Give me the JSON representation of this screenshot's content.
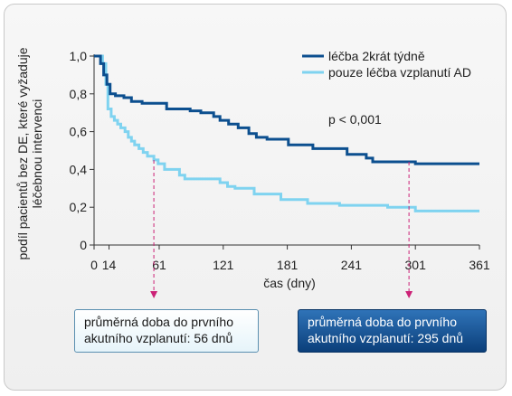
{
  "chart_data": {
    "type": "line",
    "title": "",
    "xlabel": "čas (dny)",
    "ylabel_lines": [
      "podíl pacientů bez DE, které vyžaduje",
      "léčebnou intervenci"
    ],
    "xlim": [
      0,
      361
    ],
    "ylim": [
      0,
      1.0
    ],
    "x_ticks": [
      0,
      14,
      61,
      121,
      181,
      241,
      301,
      361
    ],
    "x_tick_labels": [
      "0",
      "14",
      "61",
      "121",
      "181",
      "241",
      "301",
      "361"
    ],
    "y_ticks": [
      0,
      0.2,
      0.4,
      0.6,
      0.8,
      1.0
    ],
    "y_tick_labels": [
      "0",
      "0,2",
      "0,4",
      "0,6",
      "0,8",
      "1,0"
    ],
    "legend_position": "top-right",
    "series": [
      {
        "name": "léčba 2krát týdně",
        "color": "#0c4f8f",
        "points": [
          [
            0,
            1.0
          ],
          [
            6,
            1.0
          ],
          [
            6,
            0.96
          ],
          [
            9,
            0.96
          ],
          [
            9,
            0.9
          ],
          [
            12,
            0.9
          ],
          [
            12,
            0.85
          ],
          [
            15,
            0.85
          ],
          [
            15,
            0.8
          ],
          [
            20,
            0.8
          ],
          [
            20,
            0.79
          ],
          [
            28,
            0.79
          ],
          [
            28,
            0.78
          ],
          [
            35,
            0.78
          ],
          [
            35,
            0.76
          ],
          [
            45,
            0.76
          ],
          [
            45,
            0.75
          ],
          [
            68,
            0.75
          ],
          [
            68,
            0.72
          ],
          [
            90,
            0.72
          ],
          [
            90,
            0.71
          ],
          [
            100,
            0.71
          ],
          [
            100,
            0.7
          ],
          [
            112,
            0.7
          ],
          [
            112,
            0.68
          ],
          [
            118,
            0.68
          ],
          [
            118,
            0.66
          ],
          [
            126,
            0.66
          ],
          [
            126,
            0.64
          ],
          [
            135,
            0.64
          ],
          [
            135,
            0.62
          ],
          [
            145,
            0.62
          ],
          [
            145,
            0.59
          ],
          [
            152,
            0.59
          ],
          [
            152,
            0.57
          ],
          [
            162,
            0.57
          ],
          [
            162,
            0.56
          ],
          [
            182,
            0.56
          ],
          [
            182,
            0.53
          ],
          [
            205,
            0.53
          ],
          [
            205,
            0.51
          ],
          [
            237,
            0.51
          ],
          [
            237,
            0.48
          ],
          [
            255,
            0.48
          ],
          [
            255,
            0.46
          ],
          [
            261,
            0.46
          ],
          [
            261,
            0.44
          ],
          [
            301,
            0.44
          ],
          [
            301,
            0.43
          ],
          [
            361,
            0.43
          ]
        ]
      },
      {
        "name": "pouze léčba vzplanutí AD",
        "color": "#7fd3f0",
        "points": [
          [
            0,
            1.0
          ],
          [
            8,
            1.0
          ],
          [
            8,
            0.96
          ],
          [
            11,
            0.96
          ],
          [
            11,
            0.85
          ],
          [
            13,
            0.85
          ],
          [
            13,
            0.72
          ],
          [
            16,
            0.72
          ],
          [
            16,
            0.68
          ],
          [
            19,
            0.68
          ],
          [
            19,
            0.66
          ],
          [
            22,
            0.66
          ],
          [
            22,
            0.64
          ],
          [
            25,
            0.64
          ],
          [
            25,
            0.62
          ],
          [
            29,
            0.62
          ],
          [
            29,
            0.6
          ],
          [
            32,
            0.6
          ],
          [
            32,
            0.57
          ],
          [
            35,
            0.57
          ],
          [
            35,
            0.55
          ],
          [
            38,
            0.55
          ],
          [
            38,
            0.53
          ],
          [
            42,
            0.53
          ],
          [
            42,
            0.51
          ],
          [
            46,
            0.51
          ],
          [
            46,
            0.49
          ],
          [
            50,
            0.49
          ],
          [
            50,
            0.47
          ],
          [
            56,
            0.47
          ],
          [
            56,
            0.45
          ],
          [
            60,
            0.45
          ],
          [
            60,
            0.43
          ],
          [
            66,
            0.43
          ],
          [
            66,
            0.4
          ],
          [
            80,
            0.4
          ],
          [
            80,
            0.37
          ],
          [
            85,
            0.37
          ],
          [
            85,
            0.35
          ],
          [
            118,
            0.35
          ],
          [
            118,
            0.33
          ],
          [
            125,
            0.33
          ],
          [
            125,
            0.31
          ],
          [
            132,
            0.31
          ],
          [
            132,
            0.3
          ],
          [
            150,
            0.3
          ],
          [
            150,
            0.27
          ],
          [
            175,
            0.27
          ],
          [
            175,
            0.24
          ],
          [
            200,
            0.24
          ],
          [
            200,
            0.22
          ],
          [
            230,
            0.22
          ],
          [
            230,
            0.21
          ],
          [
            275,
            0.21
          ],
          [
            275,
            0.2
          ],
          [
            301,
            0.2
          ],
          [
            301,
            0.18
          ],
          [
            361,
            0.18
          ]
        ]
      }
    ],
    "annotations": [
      {
        "x": 56,
        "lines": [
          "průměrná doba do prvního",
          "akutního vzplanutí: 56 dnů"
        ],
        "style": "light"
      },
      {
        "x": 295,
        "lines": [
          "průměrná doba do prvního",
          "akutního vzplanutí: 295 dnů"
        ],
        "style": "dark"
      }
    ],
    "pvalue_text": "p < 0,001",
    "arrow_color": "#cc2277"
  }
}
